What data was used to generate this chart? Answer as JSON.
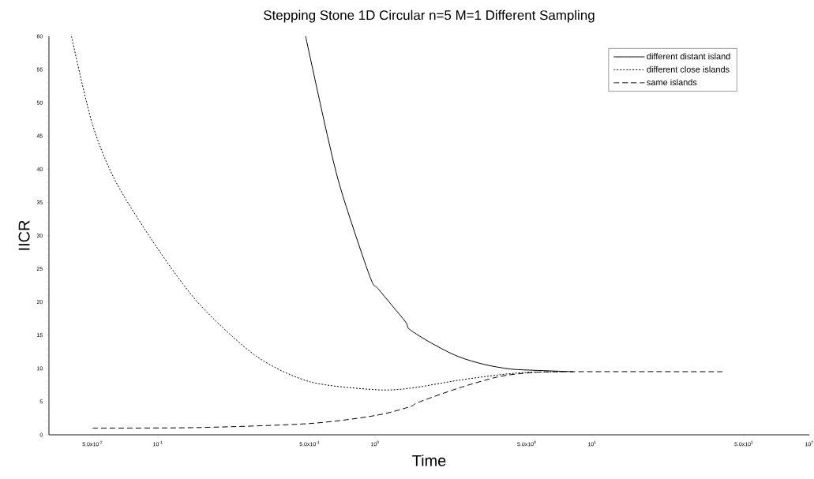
{
  "chart_data": {
    "type": "line",
    "title": "Stepping Stone 1D Circular n=5 M=1 Different Sampling",
    "xlabel": "Time",
    "ylabel": "IICR",
    "log": "x",
    "xlim": [
      0.0315,
      100
    ],
    "ylim": [
      0,
      60
    ],
    "xticks": [
      {
        "value": 0.05,
        "label": "5.0x10$^{-2}$"
      },
      {
        "value": 0.1,
        "label": "10$^{-1}$"
      },
      {
        "value": 0.5,
        "label": "5.0x10$^{-1}$"
      },
      {
        "value": 1,
        "label": "10$^{0}$"
      },
      {
        "value": 5,
        "label": "5.0x10$^{0}$"
      },
      {
        "value": 10,
        "label": "10$^{1}$"
      },
      {
        "value": 50,
        "label": "5.0x10$^{1}$"
      },
      {
        "value": 100,
        "label": "10$^{2}$"
      }
    ],
    "yticks": [
      0,
      5,
      10,
      15,
      20,
      25,
      30,
      35,
      40,
      45,
      50,
      55,
      60
    ],
    "legend": "top right",
    "grid": false,
    "marker": "none",
    "series": [
      {
        "name": "different distant island",
        "color": "#000000",
        "line_style": "solid",
        "x": [
          0.479,
          0.605,
          0.703,
          0.948,
          1.04,
          1.375,
          1.44,
          1.82,
          2.41,
          3.18,
          4.21,
          5.57,
          8.2
        ],
        "values": [
          60,
          44.9,
          36.5,
          23.8,
          21.9,
          17.1,
          15.9,
          13.8,
          11.8,
          10.6,
          9.9,
          9.7,
          9.5
        ]
      },
      {
        "name": "different close islands",
        "color": "#000000",
        "line_style": "dotted",
        "x": [
          0.04,
          0.0497,
          0.064,
          0.1,
          0.157,
          0.285,
          0.5,
          1.0,
          1.44,
          2.41,
          3.66,
          4.99,
          7.34
        ],
        "values": [
          60,
          47.0,
          38.1,
          28.0,
          19.5,
          11.8,
          8.0,
          6.8,
          7.0,
          8.2,
          9.0,
          9.4,
          9.5
        ]
      },
      {
        "name": "same islands",
        "color": "#000000",
        "line_style": "dashed",
        "x": [
          0.05,
          0.157,
          0.5,
          1.0,
          1.44,
          1.585,
          2.41,
          3.66,
          4.99,
          7.34,
          40.5
        ],
        "values": [
          1.0,
          1.1,
          1.7,
          2.9,
          4.2,
          4.9,
          7.0,
          8.7,
          9.3,
          9.5,
          9.5
        ]
      }
    ]
  }
}
